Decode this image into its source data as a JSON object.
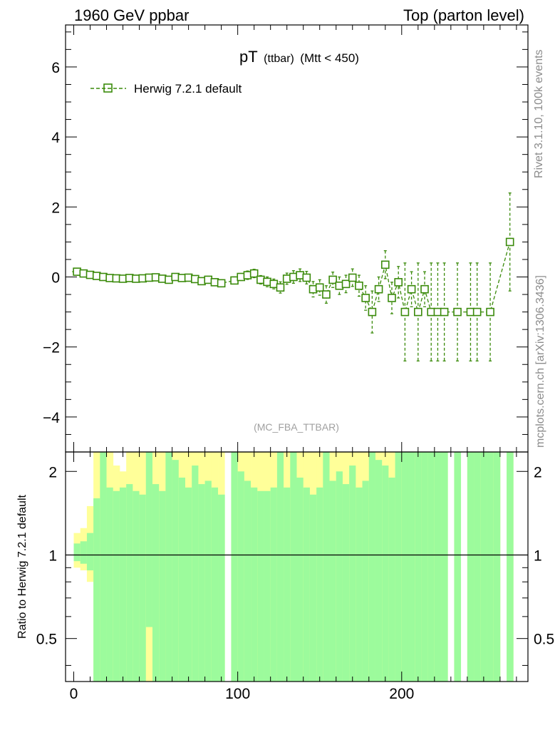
{
  "header": {
    "left_title": "1960 GeV ppbar",
    "right_title": "Top (parton level)"
  },
  "side_labels": {
    "rivet": "Rivet 3.1.10,  100k events",
    "mcplots": "mcplots.cern.ch [arXiv:1306.3436]"
  },
  "plot_title": {
    "main": "pT",
    "sub1": "(ttbar)",
    "sub2": "(Mtt < 450)"
  },
  "watermark": "(MC_FBA_TTBAR)",
  "ratio_ylabel": "Ratio to Herwig 7.2.1 default",
  "colors": {
    "series": "#3a8a0a",
    "band_inner": "#9cfb9c",
    "band_outer": "#ffff99",
    "axis": "#000000"
  },
  "chart_data": [
    {
      "type": "scatter",
      "title": "pT (ttbar) (Mtt < 450)",
      "xlabel": "",
      "ylabel": "",
      "xlim": [
        -5,
        277
      ],
      "ylim": [
        -5.0,
        7.2
      ],
      "x_ticks": [
        0,
        100,
        200
      ],
      "y_ticks": [
        -4,
        -2,
        0,
        2,
        4,
        6
      ],
      "y_tick_labels": [
        "−4",
        "−2",
        "0",
        "2",
        "4",
        "6"
      ],
      "legend": {
        "position": "top-left",
        "entries": [
          "Herwig 7.2.1 default"
        ]
      },
      "series": [
        {
          "name": "Herwig 7.2.1 default",
          "x": [
            2,
            6,
            10,
            14,
            18,
            22,
            26,
            30,
            34,
            38,
            42,
            46,
            50,
            54,
            58,
            62,
            66,
            70,
            74,
            78,
            82,
            86,
            90,
            98,
            102,
            106,
            110,
            114,
            118,
            122,
            126,
            130,
            134,
            138,
            142,
            146,
            150,
            154,
            158,
            162,
            166,
            170,
            174,
            178,
            182,
            186,
            190,
            194,
            198,
            202,
            206,
            210,
            214,
            218,
            222,
            226,
            234,
            242,
            246,
            254,
            266
          ],
          "y": [
            0.15,
            0.1,
            0.06,
            0.03,
            0.0,
            -0.03,
            -0.04,
            -0.05,
            -0.03,
            -0.05,
            -0.04,
            -0.02,
            -0.01,
            -0.05,
            -0.08,
            0.0,
            -0.03,
            -0.02,
            -0.06,
            -0.12,
            -0.08,
            -0.15,
            -0.18,
            -0.1,
            0.0,
            0.05,
            0.1,
            -0.08,
            -0.14,
            -0.2,
            -0.3,
            -0.05,
            0.0,
            0.05,
            -0.02,
            -0.35,
            -0.3,
            -0.5,
            -0.08,
            -0.25,
            -0.2,
            -0.02,
            -0.25,
            -0.6,
            -1.0,
            -0.35,
            0.35,
            -0.6,
            -0.15,
            -1.0,
            -0.35,
            -1.0,
            -0.35,
            -1.0,
            -1.0,
            -1.0,
            -1.0,
            -1.0,
            -1.0,
            -1.0,
            1.0
          ],
          "err": [
            0.06,
            0.06,
            0.06,
            0.06,
            0.06,
            0.06,
            0.06,
            0.06,
            0.07,
            0.07,
            0.07,
            0.07,
            0.07,
            0.08,
            0.08,
            0.08,
            0.08,
            0.08,
            0.09,
            0.09,
            0.1,
            0.1,
            0.1,
            0.1,
            0.1,
            0.12,
            0.12,
            0.12,
            0.14,
            0.14,
            0.16,
            0.16,
            0.18,
            0.18,
            0.18,
            0.22,
            0.22,
            0.25,
            0.22,
            0.25,
            0.25,
            0.25,
            0.3,
            0.35,
            0.6,
            0.35,
            0.4,
            0.45,
            0.45,
            1.4,
            0.5,
            1.4,
            0.5,
            1.4,
            1.4,
            1.4,
            1.4,
            1.4,
            1.4,
            1.4,
            1.4
          ]
        }
      ]
    },
    {
      "type": "area",
      "title": "",
      "xlabel": "",
      "ylabel": "Ratio to Herwig 7.2.1 default",
      "xlim": [
        -5,
        277
      ],
      "ylim": [
        0.35,
        2.35
      ],
      "y_scale": "log",
      "x_ticks": [
        0,
        100,
        200
      ],
      "x_tick_labels": [
        "0",
        "100",
        "200"
      ],
      "y_ticks": [
        0.5,
        1,
        2
      ],
      "y_tick_labels": [
        "0.5",
        "1",
        "2"
      ],
      "reference_line": 1,
      "x_edges": [
        0,
        4,
        8,
        12,
        16,
        20,
        24,
        28,
        32,
        36,
        40,
        44,
        48,
        52,
        56,
        60,
        64,
        68,
        72,
        76,
        80,
        84,
        88,
        92,
        96,
        100,
        104,
        108,
        112,
        116,
        120,
        124,
        128,
        132,
        136,
        140,
        144,
        148,
        152,
        156,
        160,
        164,
        168,
        172,
        176,
        180,
        184,
        188,
        192,
        196,
        200,
        204,
        208,
        212,
        216,
        220,
        224,
        228,
        232,
        236,
        240,
        244,
        248,
        252,
        256,
        260,
        264,
        268,
        272
      ],
      "inner_low": [
        0.95,
        0.93,
        0.88,
        0.35,
        0.35,
        0.35,
        0.35,
        0.35,
        0.35,
        0.35,
        0.35,
        0.55,
        0.35,
        0.35,
        0.35,
        0.35,
        0.35,
        0.35,
        0.35,
        0.35,
        0.35,
        0.35,
        0.35,
        0.35,
        0.35,
        0.35,
        0.35,
        0.35,
        0.35,
        0.35,
        0.35,
        0.35,
        0.35,
        0.35,
        0.35,
        0.35,
        0.35,
        0.35,
        0.35,
        0.35,
        0.35,
        0.35,
        0.35,
        0.35,
        0.35,
        0.35,
        0.35,
        0.35,
        0.35,
        0.35,
        0.35,
        0.35,
        0.35,
        0.35,
        0.35,
        0.35,
        0.35,
        0.35,
        0.35,
        0.35,
        0.35,
        0.35,
        0.35,
        0.35,
        0.35,
        0.35,
        0.35,
        0.35
      ],
      "inner_high": [
        1.1,
        1.12,
        1.2,
        1.6,
        2.35,
        1.75,
        1.7,
        1.75,
        1.8,
        1.7,
        1.65,
        2.35,
        1.8,
        1.7,
        2.35,
        2.2,
        1.9,
        1.75,
        2.1,
        1.8,
        1.85,
        1.75,
        1.65,
        0.35,
        2.35,
        2.0,
        1.85,
        1.75,
        1.7,
        1.7,
        1.75,
        2.35,
        1.75,
        2.35,
        1.9,
        1.75,
        1.65,
        1.75,
        2.35,
        1.85,
        2.0,
        1.8,
        2.1,
        1.75,
        1.85,
        2.35,
        2.2,
        2.1,
        1.9,
        2.35,
        2.35,
        2.35,
        2.35,
        2.35,
        2.35,
        2.35,
        2.35,
        0.35,
        2.35,
        0.35,
        2.35,
        2.35,
        2.35,
        2.35,
        2.35,
        0.35,
        2.35,
        0.35
      ],
      "outer_low": [
        0.9,
        0.88,
        0.8,
        0.35,
        0.35,
        0.35,
        0.35,
        0.35,
        0.35,
        0.35,
        0.35,
        0.35,
        0.35,
        0.35,
        0.35,
        0.35,
        0.35,
        0.35,
        0.35,
        0.35,
        0.35,
        0.35,
        0.35,
        0.35,
        0.35,
        0.35,
        0.35,
        0.35,
        0.35,
        0.35,
        0.35,
        0.35,
        0.35,
        0.35,
        0.35,
        0.35,
        0.35,
        0.35,
        0.35,
        0.35,
        0.35,
        0.35,
        0.35,
        0.35,
        0.35,
        0.35,
        0.35,
        0.35,
        0.35,
        0.35,
        0.35,
        0.35,
        0.35,
        0.35,
        0.35,
        0.35,
        0.35,
        0.35,
        0.35,
        0.35,
        0.35,
        0.35,
        0.35,
        0.35,
        0.35,
        0.35,
        0.35,
        0.35
      ],
      "outer_high": [
        1.2,
        1.25,
        1.5,
        2.35,
        2.35,
        2.35,
        2.1,
        2.0,
        2.35,
        2.35,
        2.35,
        2.35,
        2.35,
        2.35,
        2.35,
        2.35,
        2.35,
        2.35,
        2.35,
        2.35,
        2.35,
        2.35,
        2.35,
        0.35,
        2.35,
        2.35,
        2.35,
        2.35,
        2.35,
        2.35,
        2.35,
        2.35,
        2.35,
        2.35,
        2.35,
        2.35,
        2.35,
        2.35,
        2.35,
        2.35,
        2.35,
        2.35,
        2.35,
        2.35,
        2.35,
        2.35,
        2.35,
        2.35,
        2.35,
        2.35,
        2.35,
        2.35,
        2.35,
        2.35,
        2.35,
        2.35,
        2.35,
        0.35,
        2.35,
        0.35,
        2.35,
        2.35,
        2.35,
        2.35,
        2.35,
        0.35,
        2.35,
        0.35
      ]
    }
  ]
}
